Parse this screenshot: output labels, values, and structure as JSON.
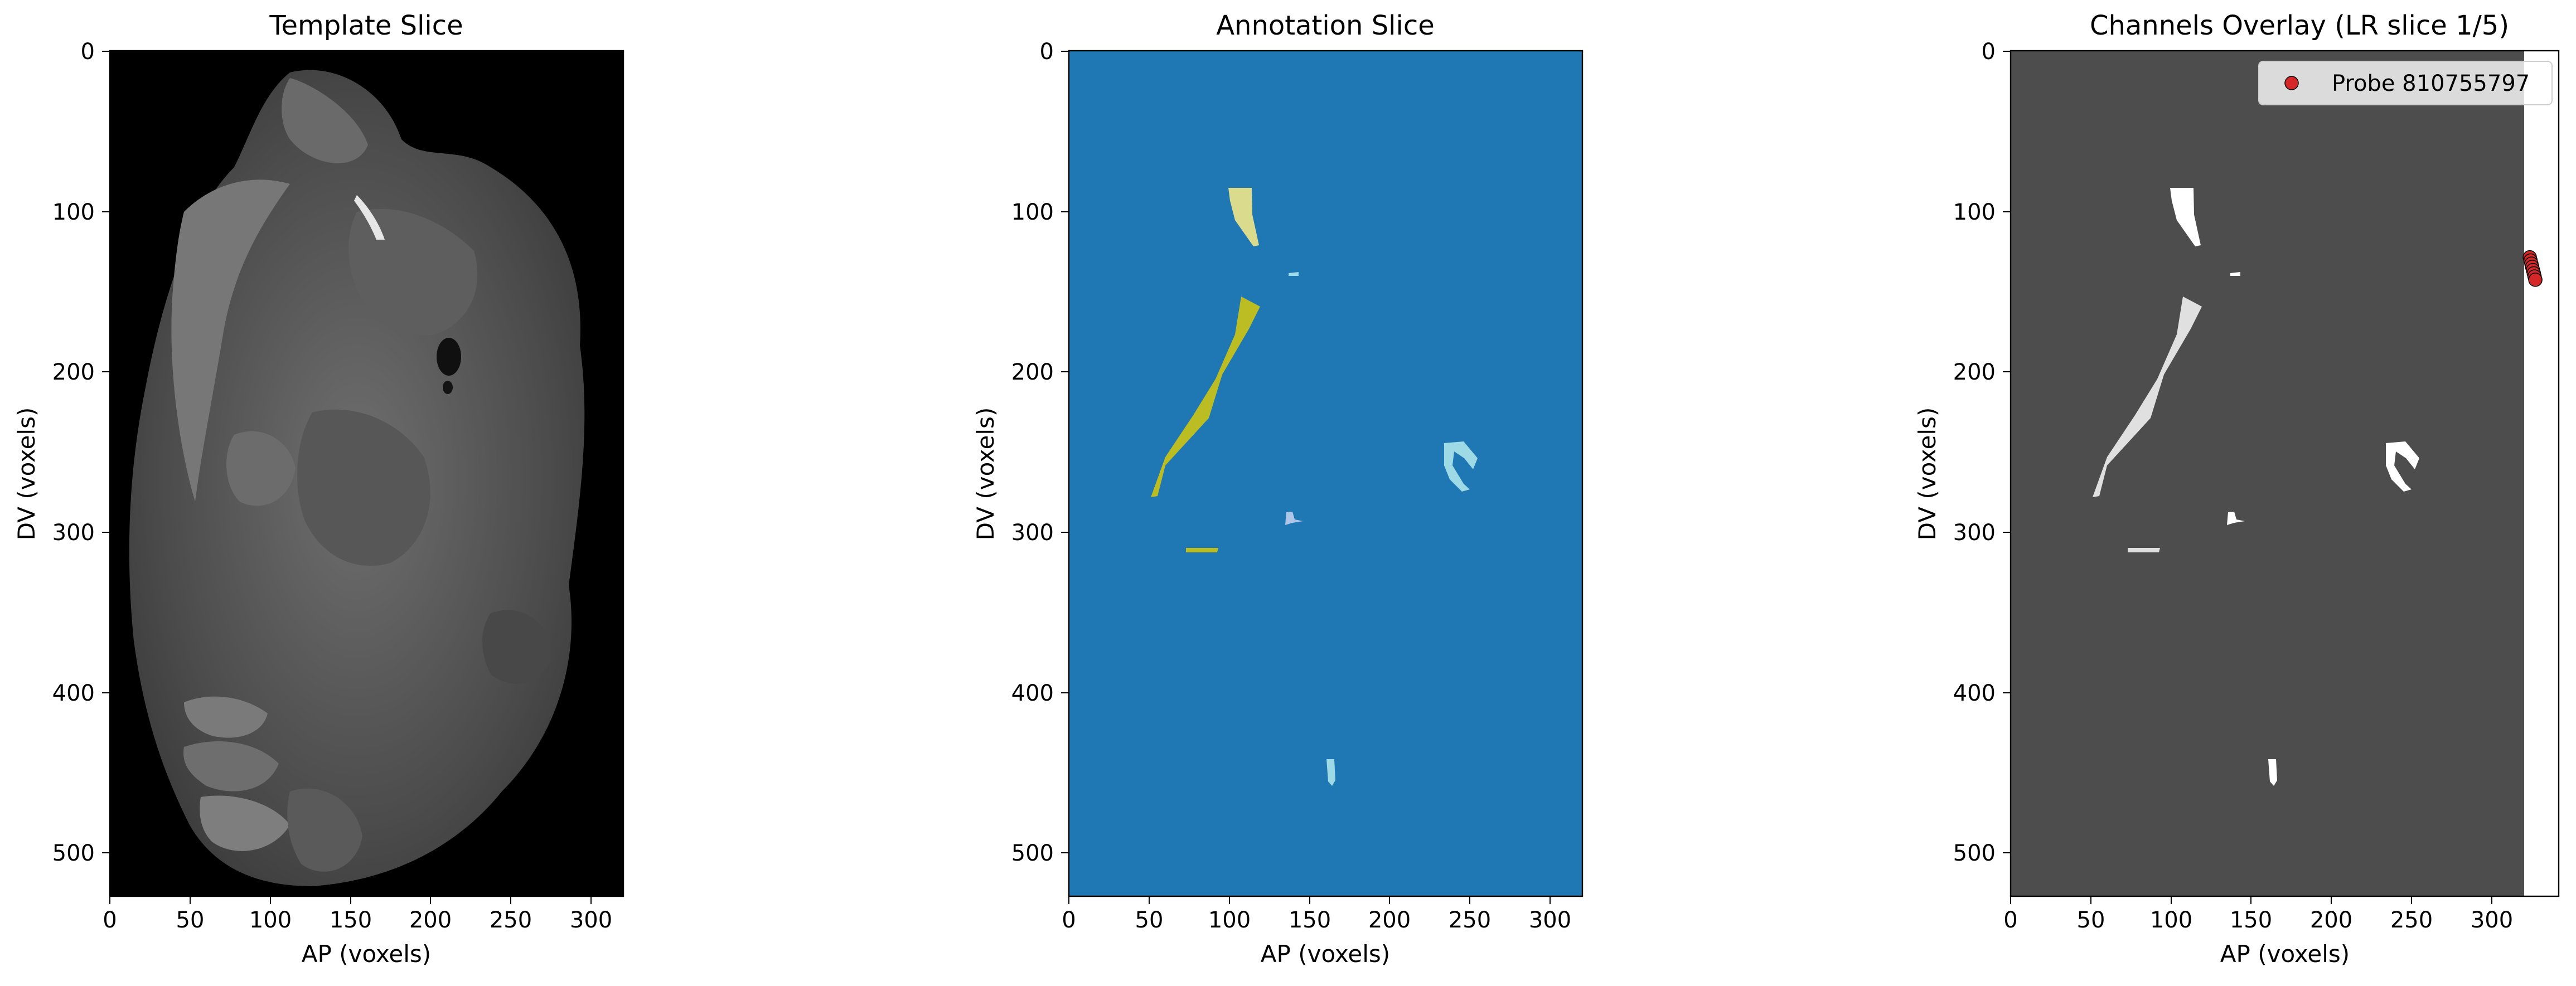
{
  "figure": {
    "panels": [
      {
        "title": "Template Slice",
        "xlabel": "AP (voxels)",
        "ylabel": "DV (voxels)",
        "image": "grayscale MRI template slice (sagittal brain section)"
      },
      {
        "title": "Annotation Slice",
        "xlabel": "AP (voxels)",
        "ylabel": "DV (voxels)",
        "image": "annotation label slice: blue background with yellow, olive, and light-blue regions"
      },
      {
        "title": "Channels Overlay (LR slice 1/5)",
        "xlabel": "AP (voxels)",
        "ylabel": "DV (voxels)",
        "image": "dark gray background with white region masks and red probe channel markers",
        "legend": [
          "Probe 810755797"
        ]
      }
    ]
  },
  "colors": {
    "annotation_background": "#1f77b4",
    "annotation_yellow": "#dbdb8d",
    "annotation_olive": "#bcbd22",
    "annotation_lightblue": "#9edae5",
    "overlay_background": "#4d4d4d",
    "probe_marker": "#d62728"
  },
  "chart_data": [
    {
      "type": "heatmap",
      "title": "Template Slice",
      "xlabel": "AP (voxels)",
      "ylabel": "DV (voxels)",
      "xlim": [
        0,
        320
      ],
      "ylim": [
        528,
        0
      ],
      "xticks": [
        "0",
        "50",
        "100",
        "150",
        "200",
        "250",
        "300"
      ],
      "yticks": [
        "0",
        "100",
        "200",
        "300",
        "400",
        "500"
      ],
      "grid": false
    },
    {
      "type": "heatmap",
      "title": "Annotation Slice",
      "xlabel": "AP (voxels)",
      "ylabel": "DV (voxels)",
      "xlim": [
        0,
        320
      ],
      "ylim": [
        528,
        0
      ],
      "xticks": [
        "0",
        "50",
        "100",
        "150",
        "200",
        "250",
        "300"
      ],
      "yticks": [
        "0",
        "100",
        "200",
        "300",
        "400",
        "500"
      ],
      "grid": false
    },
    {
      "type": "scatter",
      "title": "Channels Overlay (LR slice 1/5)",
      "xlabel": "AP (voxels)",
      "ylabel": "DV (voxels)",
      "xlim": [
        0,
        342
      ],
      "ylim": [
        528,
        0
      ],
      "xticks": [
        "0",
        "50",
        "100",
        "150",
        "200",
        "250",
        "300"
      ],
      "yticks": [
        "0",
        "100",
        "200",
        "300",
        "400",
        "500"
      ],
      "grid": false,
      "legend_position": "top-right",
      "series": [
        {
          "name": "Probe 810755797",
          "color": "#d62728",
          "x": [
            323.5,
            324.0,
            324.5,
            325.0,
            325.5,
            326.0,
            326.5,
            327.0
          ],
          "y": [
            129,
            131,
            133,
            135,
            137,
            139,
            141,
            143
          ]
        }
      ]
    }
  ]
}
